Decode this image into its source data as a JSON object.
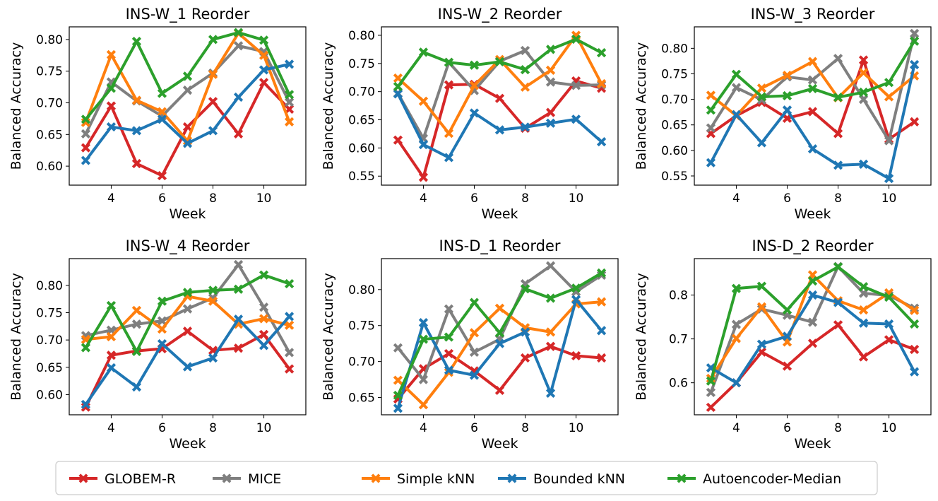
{
  "chart_data": [
    {
      "type": "line",
      "title": "INS-W_1 Reorder",
      "xlabel": "Week",
      "ylabel": "Balanced Accuracy",
      "x": [
        3,
        4,
        5,
        6,
        7,
        8,
        9,
        10,
        11
      ],
      "xlim": [
        2.35,
        11.65
      ],
      "xticks": [
        4,
        6,
        8,
        10
      ],
      "ylim": [
        0.57,
        0.82
      ],
      "yticks": [
        0.6,
        0.65,
        0.7,
        0.75,
        0.8
      ],
      "ytick_labels": [
        "0.60",
        "0.65",
        "0.70",
        "0.75",
        "0.80"
      ],
      "series": [
        {
          "name": "GLOBEM-R",
          "values": [
            0.629,
            0.695,
            0.604,
            0.585,
            0.662,
            0.702,
            0.651,
            0.732,
            0.69
          ]
        },
        {
          "name": "MICE",
          "values": [
            0.651,
            0.733,
            0.703,
            0.679,
            0.72,
            0.747,
            0.79,
            0.781,
            0.701
          ]
        },
        {
          "name": "Simple kNN",
          "values": [
            0.669,
            0.776,
            0.704,
            0.686,
            0.64,
            0.745,
            0.81,
            0.775,
            0.67
          ]
        },
        {
          "name": "Bounded kNN",
          "values": [
            0.609,
            0.662,
            0.656,
            0.674,
            0.636,
            0.656,
            0.709,
            0.752,
            0.761
          ]
        },
        {
          "name": "Autoencoder-Median",
          "values": [
            0.674,
            0.723,
            0.797,
            0.715,
            0.742,
            0.8,
            0.811,
            0.799,
            0.713
          ]
        }
      ]
    },
    {
      "type": "line",
      "title": "INS-W_2 Reorder",
      "xlabel": "Week",
      "ylabel": "Balanced Accuracy",
      "x": [
        3,
        4,
        5,
        6,
        7,
        8,
        9,
        10,
        11
      ],
      "xlim": [
        2.35,
        11.65
      ],
      "xticks": [
        4,
        6,
        8,
        10
      ],
      "ylim": [
        0.534,
        0.815
      ],
      "yticks": [
        0.55,
        0.6,
        0.65,
        0.7,
        0.75,
        0.8
      ],
      "ytick_labels": [
        "0.55",
        "0.60",
        "0.65",
        "0.70",
        "0.75",
        "0.80"
      ],
      "series": [
        {
          "name": "GLOBEM-R",
          "values": [
            0.614,
            0.548,
            0.712,
            0.713,
            0.688,
            0.635,
            0.663,
            0.719,
            0.706
          ]
        },
        {
          "name": "MICE",
          "values": [
            0.697,
            0.617,
            0.752,
            0.702,
            0.754,
            0.773,
            0.717,
            0.711,
            0.712
          ]
        },
        {
          "name": "Simple kNN",
          "values": [
            0.724,
            0.683,
            0.626,
            0.711,
            0.757,
            0.708,
            0.738,
            0.8,
            0.714
          ]
        },
        {
          "name": "Bounded kNN",
          "values": [
            0.696,
            0.606,
            0.583,
            0.662,
            0.632,
            0.637,
            0.644,
            0.651,
            0.611
          ]
        },
        {
          "name": "Autoencoder-Median",
          "values": [
            0.709,
            0.77,
            0.752,
            0.747,
            0.753,
            0.739,
            0.775,
            0.793,
            0.769
          ]
        }
      ]
    },
    {
      "type": "line",
      "title": "INS-W_3 Reorder",
      "xlabel": "Week",
      "ylabel": "Balanced Accuracy",
      "x": [
        3,
        4,
        5,
        6,
        7,
        8,
        9,
        10,
        11
      ],
      "xlim": [
        2.35,
        11.65
      ],
      "xticks": [
        4,
        6,
        8,
        10
      ],
      "ylim": [
        0.532,
        0.842
      ],
      "yticks": [
        0.55,
        0.6,
        0.65,
        0.7,
        0.75,
        0.8
      ],
      "ytick_labels": [
        "0.55",
        "0.60",
        "0.65",
        "0.70",
        "0.75",
        "0.80"
      ],
      "series": [
        {
          "name": "GLOBEM-R",
          "values": [
            0.633,
            0.668,
            0.694,
            0.663,
            0.676,
            0.633,
            0.777,
            0.622,
            0.656
          ]
        },
        {
          "name": "MICE",
          "values": [
            0.644,
            0.723,
            0.699,
            0.744,
            0.738,
            0.78,
            0.7,
            0.619,
            0.829
          ]
        },
        {
          "name": "Simple kNN",
          "values": [
            0.708,
            0.668,
            0.722,
            0.747,
            0.774,
            0.703,
            0.752,
            0.705,
            0.746
          ]
        },
        {
          "name": "Bounded kNN",
          "values": [
            0.576,
            0.67,
            0.615,
            0.679,
            0.603,
            0.571,
            0.573,
            0.545,
            0.768
          ]
        },
        {
          "name": "Autoencoder-Median",
          "values": [
            0.679,
            0.749,
            0.705,
            0.707,
            0.721,
            0.704,
            0.714,
            0.733,
            0.814
          ]
        }
      ]
    },
    {
      "type": "line",
      "title": "INS-W_4 Reorder",
      "xlabel": "Week",
      "ylabel": "Balanced Accuracy",
      "x": [
        3,
        4,
        5,
        6,
        7,
        8,
        9,
        10,
        11
      ],
      "xlim": [
        2.35,
        11.65
      ],
      "xticks": [
        4,
        6,
        8,
        10
      ],
      "ylim": [
        0.563,
        0.849
      ],
      "yticks": [
        0.6,
        0.65,
        0.7,
        0.75,
        0.8
      ],
      "ytick_labels": [
        "0.60",
        "0.65",
        "0.70",
        "0.75",
        "0.80"
      ],
      "series": [
        {
          "name": "GLOBEM-R",
          "values": [
            0.577,
            0.672,
            0.68,
            0.684,
            0.716,
            0.681,
            0.685,
            0.71,
            0.647
          ]
        },
        {
          "name": "MICE",
          "values": [
            0.708,
            0.718,
            0.729,
            0.735,
            0.757,
            0.777,
            0.838,
            0.76,
            0.677
          ]
        },
        {
          "name": "Simple kNN",
          "values": [
            0.701,
            0.706,
            0.754,
            0.72,
            0.78,
            0.771,
            0.729,
            0.739,
            0.727
          ]
        },
        {
          "name": "Bounded kNN",
          "values": [
            0.582,
            0.649,
            0.614,
            0.693,
            0.651,
            0.667,
            0.738,
            0.69,
            0.743
          ]
        },
        {
          "name": "Autoencoder-Median",
          "values": [
            0.686,
            0.763,
            0.679,
            0.771,
            0.787,
            0.791,
            0.793,
            0.819,
            0.803
          ]
        }
      ]
    },
    {
      "type": "line",
      "title": "INS-D_1 Reorder",
      "xlabel": "Week",
      "ylabel": "Balanced Accuracy",
      "x": [
        3,
        4,
        5,
        6,
        7,
        8,
        9,
        10,
        11
      ],
      "xlim": [
        2.35,
        11.65
      ],
      "xticks": [
        4,
        6,
        8,
        10
      ],
      "ylim": [
        0.626,
        0.843
      ],
      "yticks": [
        0.65,
        0.7,
        0.75,
        0.8
      ],
      "ytick_labels": [
        "0.65",
        "0.70",
        "0.75",
        "0.80"
      ],
      "series": [
        {
          "name": "GLOBEM-R",
          "values": [
            0.648,
            0.69,
            0.711,
            0.687,
            0.66,
            0.705,
            0.721,
            0.708,
            0.705
          ]
        },
        {
          "name": "MICE",
          "values": [
            0.719,
            0.675,
            0.773,
            0.713,
            0.731,
            0.808,
            0.833,
            0.797,
            0.82
          ]
        },
        {
          "name": "Simple kNN",
          "values": [
            0.674,
            0.64,
            0.685,
            0.74,
            0.774,
            0.747,
            0.741,
            0.78,
            0.783
          ]
        },
        {
          "name": "Bounded kNN",
          "values": [
            0.635,
            0.754,
            0.688,
            0.681,
            0.725,
            0.741,
            0.656,
            0.786,
            0.743
          ]
        },
        {
          "name": "Autoencoder-Median",
          "values": [
            0.653,
            0.731,
            0.734,
            0.782,
            0.74,
            0.801,
            0.788,
            0.802,
            0.823
          ]
        }
      ]
    },
    {
      "type": "line",
      "title": "INS-D_2 Reorder",
      "xlabel": "Week",
      "ylabel": "Balanced Accuracy",
      "x": [
        3,
        4,
        5,
        6,
        7,
        8,
        9,
        10,
        11
      ],
      "xlim": [
        2.35,
        11.65
      ],
      "xticks": [
        4,
        6,
        8,
        10
      ],
      "ylim": [
        0.527,
        0.883
      ],
      "yticks": [
        0.6,
        0.7,
        0.8
      ],
      "ytick_labels": [
        "0.6",
        "0.7",
        "0.8"
      ],
      "series": [
        {
          "name": "GLOBEM-R",
          "values": [
            0.544,
            0.6,
            0.67,
            0.638,
            0.69,
            0.732,
            0.659,
            0.698,
            0.676
          ]
        },
        {
          "name": "MICE",
          "values": [
            0.578,
            0.733,
            0.768,
            0.754,
            0.738,
            0.865,
            0.804,
            0.799,
            0.77
          ]
        },
        {
          "name": "Simple kNN",
          "values": [
            0.61,
            0.701,
            0.773,
            0.693,
            0.846,
            0.787,
            0.766,
            0.805,
            0.765
          ]
        },
        {
          "name": "Bounded kNN",
          "values": [
            0.634,
            0.6,
            0.688,
            0.706,
            0.8,
            0.783,
            0.736,
            0.734,
            0.625
          ]
        },
        {
          "name": "Autoencoder-Median",
          "values": [
            0.604,
            0.815,
            0.82,
            0.766,
            0.832,
            0.864,
            0.819,
            0.795,
            0.734
          ]
        }
      ]
    }
  ],
  "legend": [
    {
      "name": "GLOBEM-R",
      "color": "#d62728"
    },
    {
      "name": "MICE",
      "color": "#7f7f7f"
    },
    {
      "name": "Simple kNN",
      "color": "#ff7f0e"
    },
    {
      "name": "Bounded kNN",
      "color": "#1f77b4"
    },
    {
      "name": "Autoencoder-Median",
      "color": "#2ca02c"
    }
  ]
}
